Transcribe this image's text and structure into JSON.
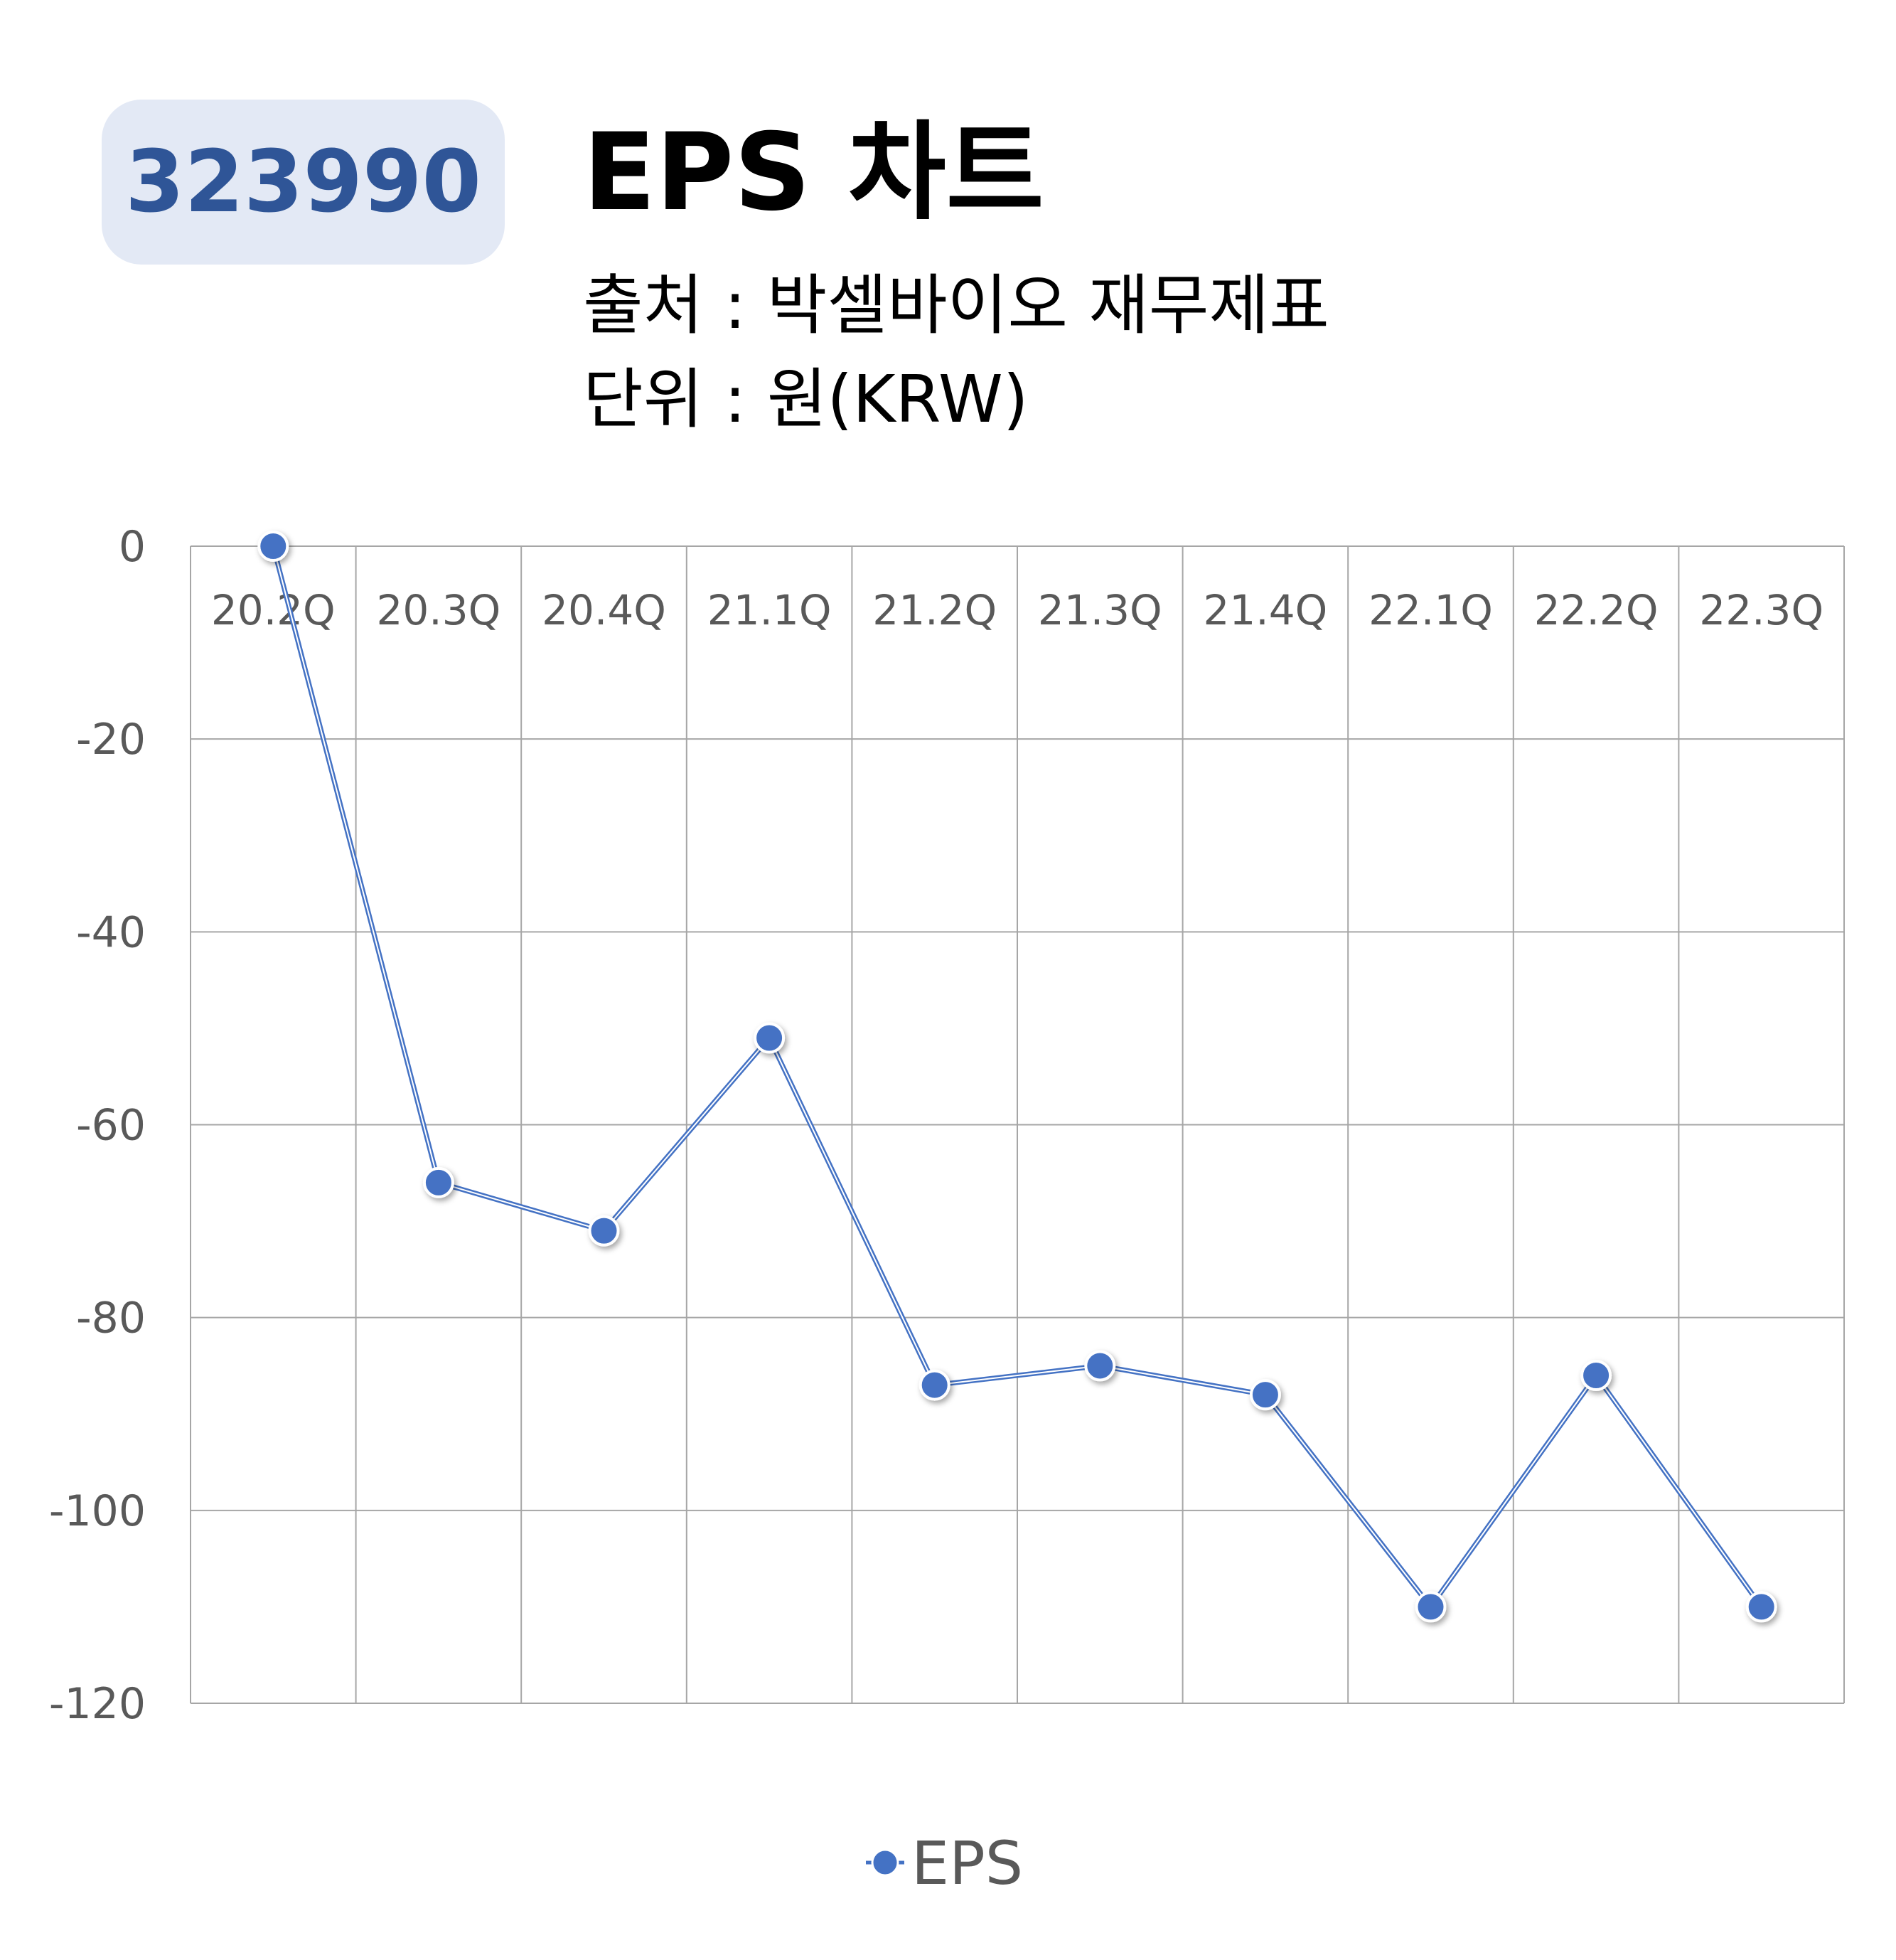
{
  "header": {
    "ticker": "323990",
    "title": "EPS 차트",
    "source": "출처 : 박셀바이오 재무제표",
    "unit": "단위 : 원(KRW)"
  },
  "colors": {
    "series": "#4472c4",
    "ticker_bg": "#e3e9f5",
    "ticker_text": "#2f5597",
    "grid": "#a6a6a6",
    "tick_text": "#595959"
  },
  "chart_data": {
    "type": "line",
    "categories": [
      "20.2Q",
      "20.3Q",
      "20.4Q",
      "21.1Q",
      "21.2Q",
      "21.3Q",
      "21.4Q",
      "22.1Q",
      "22.2Q",
      "22.3Q"
    ],
    "series": [
      {
        "name": "EPS",
        "values": [
          0,
          -66,
          -71,
          -51,
          -87,
          -85,
          -88,
          -110,
          -86,
          -110
        ]
      }
    ],
    "ylim": [
      -120,
      0
    ],
    "yticks": [
      0,
      -20,
      -40,
      -60,
      -80,
      -100,
      -120
    ],
    "xaxis_position": "top",
    "grid": true,
    "legend": "bottom"
  }
}
